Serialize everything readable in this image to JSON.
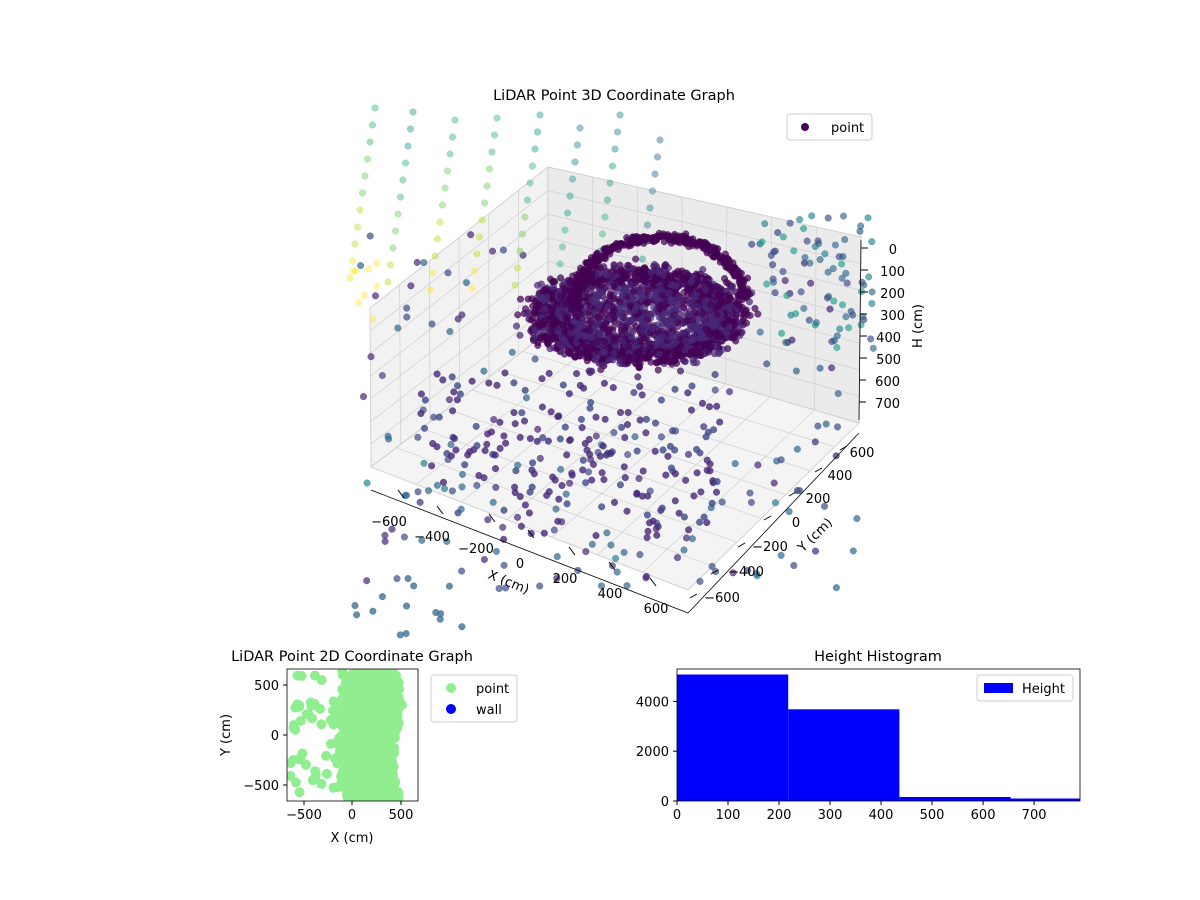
{
  "figure": {
    "background": "#ffffff"
  },
  "chart_data": [
    {
      "type": "scatter",
      "projection": "3d",
      "title": "LiDAR Point 3D Coordinate Graph",
      "xlabel": "X (cm)",
      "ylabel": "Y (cm)",
      "zlabel": "H (cm)",
      "x_ticks": [
        "−600",
        "−400",
        "−200",
        "0",
        "200",
        "400",
        "600"
      ],
      "y_ticks": [
        "−600",
        "−400",
        "−200",
        "0",
        "200",
        "400",
        "600"
      ],
      "z_ticks": [
        "0",
        "100",
        "200",
        "300",
        "400",
        "500",
        "600",
        "700"
      ],
      "xlim": [
        -700,
        700
      ],
      "ylim": [
        -700,
        700
      ],
      "zlim": [
        0,
        800
      ],
      "z_axis_inverted": true,
      "colormap": "viridis",
      "legend": {
        "placement": "top-right",
        "entries": [
          {
            "label": "point",
            "color": "#440154"
          }
        ]
      },
      "series": [
        {
          "name": "point",
          "description": "dense ring of points around the center at low height, sparse outliers spread outward"
        }
      ],
      "grid": true
    },
    {
      "type": "scatter",
      "title": "LiDAR Point 2D Coordinate Graph",
      "xlabel": "X (cm)",
      "ylabel": "Y (cm)",
      "x_ticks": [
        "−500",
        "0",
        "500"
      ],
      "y_ticks": [
        "500",
        "0",
        "−500"
      ],
      "xlim": [
        -680,
        680
      ],
      "ylim": [
        -680,
        680
      ],
      "legend": {
        "placement": "outside-right",
        "entries": [
          {
            "label": "point",
            "color": "#90ee90"
          },
          {
            "label": "wall",
            "color": "#0000ff"
          }
        ]
      },
      "series": [
        {
          "name": "point",
          "color": "#90ee90"
        },
        {
          "name": "wall",
          "color": "#0000ff"
        }
      ]
    },
    {
      "type": "bar",
      "subtype": "histogram",
      "title": "Height Histogram",
      "xlabel": "",
      "ylabel": "",
      "x_ticks": [
        "0",
        "100",
        "200",
        "300",
        "400",
        "500",
        "600",
        "700"
      ],
      "y_ticks": [
        "0",
        "2000",
        "4000"
      ],
      "xlim": [
        0,
        790
      ],
      "ylim": [
        0,
        5300
      ],
      "color": "#0000ff",
      "legend": {
        "placement": "top-right",
        "entries": [
          {
            "label": "Height",
            "color": "#0000ff"
          }
        ]
      },
      "bins": [
        {
          "start": 0,
          "end": 218,
          "count": 5080
        },
        {
          "start": 218,
          "end": 436,
          "count": 3680
        },
        {
          "start": 436,
          "end": 654,
          "count": 160
        },
        {
          "start": 654,
          "end": 790,
          "count": 100
        }
      ]
    }
  ]
}
